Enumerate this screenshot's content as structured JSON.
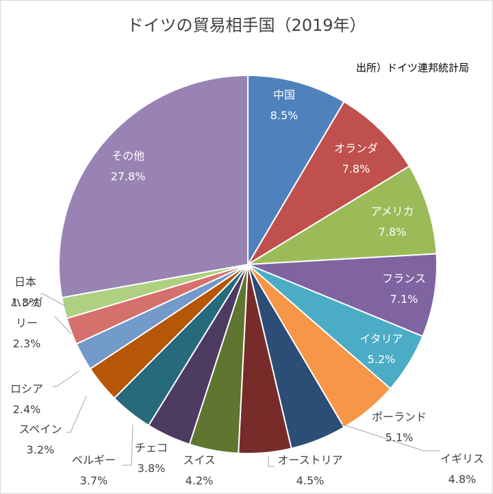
{
  "chart_data": {
    "type": "pie",
    "title": "ドイツの貿易相手国（2019年）",
    "source_note": "出所）ドイツ連邦統計局",
    "slices": [
      {
        "label": "中国",
        "value": 8.5,
        "display": "8.5%",
        "color": "#4f81bd"
      },
      {
        "label": "オランダ",
        "value": 7.8,
        "display": "7.8%",
        "color": "#c0504d"
      },
      {
        "label": "アメリカ",
        "value": 7.8,
        "display": "7.8%",
        "color": "#9bbb59"
      },
      {
        "label": "フランス",
        "value": 7.1,
        "display": "7.1%",
        "color": "#8064a2"
      },
      {
        "label": "イタリア",
        "value": 5.2,
        "display": "5.2%",
        "color": "#4bacc6"
      },
      {
        "label": "ポーランド",
        "value": 5.1,
        "display": "5.1%",
        "color": "#f79646"
      },
      {
        "label": "イギリス",
        "value": 4.8,
        "display": "4.8%",
        "color": "#2c4d75"
      },
      {
        "label": "オーストリア",
        "value": 4.5,
        "display": "4.5%",
        "color": "#772c2a"
      },
      {
        "label": "スイス",
        "value": 4.2,
        "display": "4.2%",
        "color": "#5f7530"
      },
      {
        "label": "チェコ",
        "value": 3.8,
        "display": "3.8%",
        "color": "#4d3b62"
      },
      {
        "label": "ベルギー",
        "value": 3.7,
        "display": "3.7%",
        "color": "#276a7c"
      },
      {
        "label": "スペイン",
        "value": 3.2,
        "display": "3.2%",
        "color": "#b65708"
      },
      {
        "label": "ロシア",
        "value": 2.4,
        "display": "2.4%",
        "color": "#729aca"
      },
      {
        "label": "ハンガリー",
        "value": 2.3,
        "display": "2.3%",
        "color": "#d6706d"
      },
      {
        "label": "日本",
        "value": 1.8,
        "display": "1.8%",
        "color": "#afd080"
      },
      {
        "label": "その他",
        "value": 27.8,
        "display": "27.8%",
        "color": "#9983b5"
      }
    ]
  }
}
